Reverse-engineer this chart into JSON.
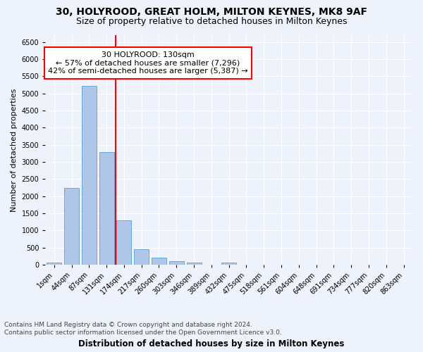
{
  "title1": "30, HOLYROOD, GREAT HOLM, MILTON KEYNES, MK8 9AF",
  "title2": "Size of property relative to detached houses in Milton Keynes",
  "xlabel": "Distribution of detached houses by size in Milton Keynes",
  "ylabel": "Number of detached properties",
  "footnote": "Contains HM Land Registry data © Crown copyright and database right 2024.\nContains public sector information licensed under the Open Government Licence v3.0.",
  "bar_labels": [
    "1sqm",
    "44sqm",
    "87sqm",
    "131sqm",
    "174sqm",
    "217sqm",
    "260sqm",
    "303sqm",
    "346sqm",
    "389sqm",
    "432sqm",
    "475sqm",
    "518sqm",
    "561sqm",
    "604sqm",
    "648sqm",
    "691sqm",
    "734sqm",
    "777sqm",
    "820sqm",
    "863sqm"
  ],
  "bar_values": [
    70,
    2250,
    5230,
    3290,
    1290,
    460,
    205,
    100,
    60,
    0,
    65,
    0,
    0,
    0,
    0,
    0,
    0,
    0,
    0,
    0,
    0
  ],
  "bar_color": "#aec6e8",
  "bar_edge_color": "#5a9fd4",
  "vline_x": 3.5,
  "vline_color": "red",
  "annotation_text": "30 HOLYROOD: 130sqm\n← 57% of detached houses are smaller (7,296)\n42% of semi-detached houses are larger (5,387) →",
  "annotation_box_color": "white",
  "annotation_box_edge_color": "red",
  "ylim": [
    0,
    6700
  ],
  "yticks": [
    0,
    500,
    1000,
    1500,
    2000,
    2500,
    3000,
    3500,
    4000,
    4500,
    5000,
    5500,
    6000,
    6500
  ],
  "background_color": "#eef2fa",
  "title1_fontsize": 10,
  "title2_fontsize": 9,
  "xlabel_fontsize": 8.5,
  "ylabel_fontsize": 8,
  "tick_fontsize": 7,
  "annotation_fontsize": 8,
  "footnote_fontsize": 6.5
}
